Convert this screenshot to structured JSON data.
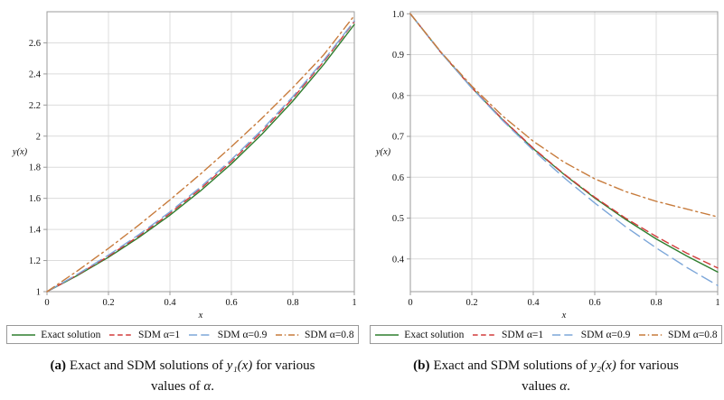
{
  "figure": {
    "captions": {
      "a": {
        "label": "(a)",
        "pre": "Exact and SDM solutions of ",
        "var": "y₁(x)",
        "post": " for various",
        "line2_pre": "values of ",
        "line2_var": "α",
        "line2_post": "."
      },
      "b": {
        "label": "(b)",
        "pre": "Exact and SDM solutions of ",
        "var": "y₂(x)",
        "post": " for various",
        "line2_pre": "values ",
        "line2_var": "α",
        "line2_post": "."
      }
    }
  },
  "chart_data": [
    {
      "type": "line",
      "title": "",
      "xlabel": "x",
      "ylabel": "y(x)",
      "xlim": [
        0,
        1
      ],
      "ylim": [
        1,
        2.8
      ],
      "grid": true,
      "grid_color": "#dcdcdc",
      "border_color": "#9b9b9b",
      "legend_position": "bottom",
      "x": [
        0,
        0.1,
        0.2,
        0.3,
        0.4,
        0.5,
        0.6,
        0.7,
        0.8,
        0.9,
        1
      ],
      "xticks": [
        {
          "v": 0,
          "label": "0"
        },
        {
          "v": 0.2,
          "label": "0.2"
        },
        {
          "v": 0.4,
          "label": "0.4"
        },
        {
          "v": 0.6,
          "label": "0.6"
        },
        {
          "v": 0.8,
          "label": "0.8"
        },
        {
          "v": 1,
          "label": "1"
        }
      ],
      "yticks": [
        {
          "v": 1,
          "label": "1"
        },
        {
          "v": 1.2,
          "label": "1.2"
        },
        {
          "v": 1.4,
          "label": "1.4"
        },
        {
          "v": 1.6,
          "label": "1.6"
        },
        {
          "v": 1.8,
          "label": "1.8"
        },
        {
          "v": 2,
          "label": "2"
        },
        {
          "v": 2.2,
          "label": "2.2"
        },
        {
          "v": 2.4,
          "label": "2.4"
        },
        {
          "v": 2.6,
          "label": "2.6"
        }
      ],
      "series": [
        {
          "name": "Exact solution",
          "color": "#2f7e2f",
          "dash": [],
          "values": [
            1,
            1.105,
            1.221,
            1.35,
            1.492,
            1.649,
            1.822,
            2.014,
            2.226,
            2.46,
            2.718
          ]
        },
        {
          "name": "SDM α=1",
          "color": "#d23b3b",
          "dash": [
            8,
            5
          ],
          "values": [
            1,
            1.109,
            1.228,
            1.359,
            1.503,
            1.662,
            1.837,
            2.03,
            2.243,
            2.478,
            2.737
          ]
        },
        {
          "name": "SDM α=0.9",
          "color": "#7da7d9",
          "dash": [
            13,
            6
          ],
          "values": [
            1,
            1.113,
            1.235,
            1.368,
            1.513,
            1.673,
            1.849,
            2.042,
            2.254,
            2.487,
            2.741
          ]
        },
        {
          "name": "SDM α=0.8",
          "color": "#c77b3c",
          "dash": [
            10,
            4,
            2,
            4
          ],
          "values": [
            1,
            1.135,
            1.278,
            1.43,
            1.59,
            1.757,
            1.932,
            2.116,
            2.312,
            2.522,
            2.775
          ]
        }
      ]
    },
    {
      "type": "line",
      "title": "",
      "xlabel": "x",
      "ylabel": "y(x)",
      "xlim": [
        0,
        1
      ],
      "ylim": [
        0.32,
        1.005
      ],
      "grid": true,
      "grid_color": "#dcdcdc",
      "border_color": "#9b9b9b",
      "legend_position": "bottom",
      "x": [
        0,
        0.1,
        0.2,
        0.3,
        0.4,
        0.5,
        0.6,
        0.7,
        0.8,
        0.9,
        1
      ],
      "xticks": [
        {
          "v": 0,
          "label": "0"
        },
        {
          "v": 0.2,
          "label": "0.2"
        },
        {
          "v": 0.4,
          "label": "0.4"
        },
        {
          "v": 0.6,
          "label": "0.6"
        },
        {
          "v": 0.8,
          "label": "0.8"
        },
        {
          "v": 1,
          "label": "1"
        }
      ],
      "yticks": [
        {
          "v": 0.4,
          "label": "0.4"
        },
        {
          "v": 0.5,
          "label": "0.5"
        },
        {
          "v": 0.6,
          "label": "0.6"
        },
        {
          "v": 0.7,
          "label": "0.7"
        },
        {
          "v": 0.8,
          "label": "0.8"
        },
        {
          "v": 0.9,
          "label": "0.9"
        },
        {
          "v": 1,
          "label": "1.0"
        }
      ],
      "series": [
        {
          "name": "Exact solution",
          "color": "#2f7e2f",
          "dash": [],
          "values": [
            1,
            0.905,
            0.819,
            0.741,
            0.67,
            0.607,
            0.549,
            0.497,
            0.449,
            0.407,
            0.368
          ]
        },
        {
          "name": "SDM α=1",
          "color": "#d23b3b",
          "dash": [
            8,
            5
          ],
          "values": [
            1,
            0.905,
            0.819,
            0.742,
            0.671,
            0.608,
            0.551,
            0.5,
            0.455,
            0.414,
            0.378
          ]
        },
        {
          "name": "SDM α=0.9",
          "color": "#7da7d9",
          "dash": [
            13,
            6
          ],
          "values": [
            1,
            0.905,
            0.818,
            0.739,
            0.666,
            0.599,
            0.537,
            0.479,
            0.427,
            0.379,
            0.335
          ]
        },
        {
          "name": "SDM α=0.8",
          "color": "#c77b3c",
          "dash": [
            10,
            4,
            2,
            4
          ],
          "values": [
            1,
            0.906,
            0.823,
            0.75,
            0.688,
            0.637,
            0.596,
            0.565,
            0.541,
            0.522,
            0.503
          ]
        }
      ]
    }
  ]
}
